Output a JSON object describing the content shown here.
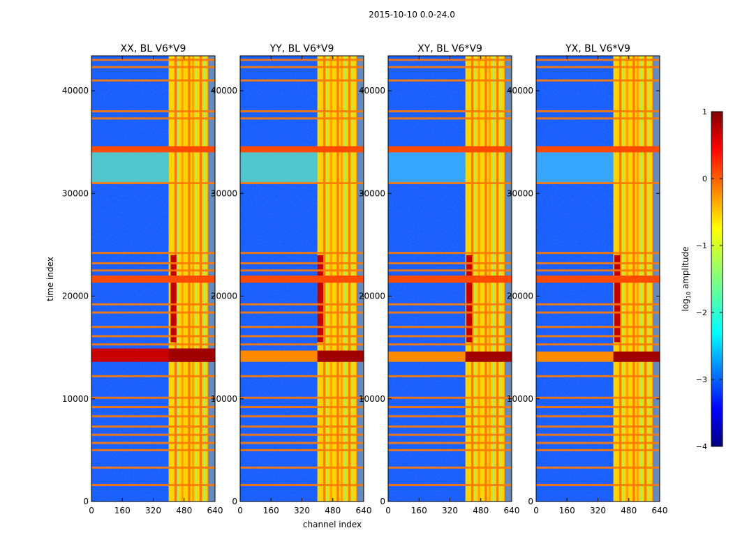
{
  "chart_data": {
    "type": "heatmap",
    "suptitle": "2015-10-10 0.0-24.0",
    "xlabel": "channel index",
    "ylabel": "time index",
    "xlim": [
      0,
      640
    ],
    "ylim": [
      0,
      43400
    ],
    "xticks": [
      0,
      160,
      320,
      480,
      640
    ],
    "xtick_labels": [
      "0",
      "160",
      "320",
      "480",
      "640"
    ],
    "yticks": [
      0,
      10000,
      20000,
      30000,
      40000
    ],
    "ytick_labels": [
      "0",
      "10000",
      "20000",
      "30000",
      "40000"
    ],
    "panels": [
      {
        "title": "XX, BL V6*V9",
        "low_band": [
          410,
          440
        ],
        "strong_row_band": [
          13600,
          14900
        ]
      },
      {
        "title": "YY, BL V6*V9",
        "low_band": [
          400,
          430
        ],
        "strong_row_band": [
          13600,
          14700
        ]
      },
      {
        "title": "XY, BL V6*V9",
        "low_band": [
          405,
          435
        ],
        "strong_row_band": [
          13600,
          14600
        ]
      },
      {
        "title": "YX, BL V6*V9",
        "low_band": [
          405,
          435
        ],
        "strong_row_band": [
          13600,
          14600
        ]
      }
    ],
    "colorbar": {
      "label_prefix": "log",
      "label_sub": "10",
      "label_suffix": " amplitude",
      "range": [
        -4,
        1
      ],
      "ticks": [
        1,
        0,
        -1,
        -2,
        -3,
        -4
      ],
      "tick_labels": [
        "1",
        "0",
        "−1",
        "−2",
        "−3",
        "−4"
      ],
      "colormap": "jet"
    },
    "bright_channel_band": [
      400,
      640
    ],
    "rfi_rows": [
      1600,
      3300,
      5000,
      5700,
      6500,
      7300,
      8300,
      9200,
      10100,
      12200,
      15300,
      16100,
      17000,
      18400,
      19200,
      21500,
      22500,
      23200,
      24200,
      31000,
      34300,
      37300,
      38000,
      41000,
      42300,
      43000
    ]
  }
}
